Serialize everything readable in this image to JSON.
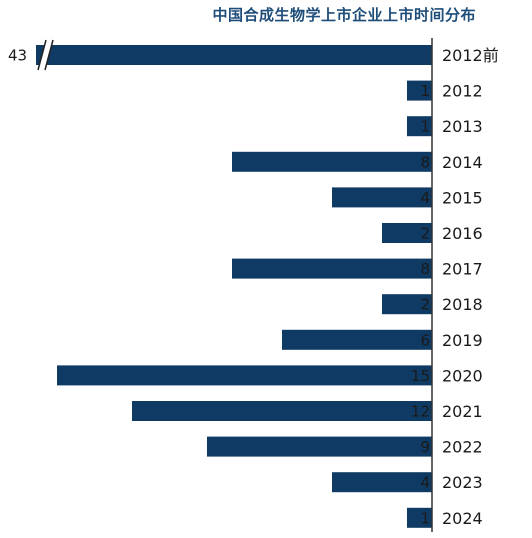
{
  "chart_data": {
    "type": "bar",
    "orientation": "horizontal",
    "title": "中国合成生物学上市企业上市时间分布",
    "xlabel": "",
    "ylabel": "",
    "categories": [
      "2012前",
      "2012",
      "2013",
      "2014",
      "2015",
      "2016",
      "2017",
      "2018",
      "2019",
      "2020",
      "2021",
      "2022",
      "2023",
      "2024"
    ],
    "values": [
      43,
      1,
      1,
      8,
      4,
      2,
      8,
      2,
      6,
      15,
      12,
      9,
      4,
      1
    ],
    "axis_break_on": "2012前",
    "grid": false,
    "legend": "none",
    "colors": {
      "bar": "#0f3a63",
      "axis": "#333333",
      "title": "#1f4d7a"
    }
  }
}
